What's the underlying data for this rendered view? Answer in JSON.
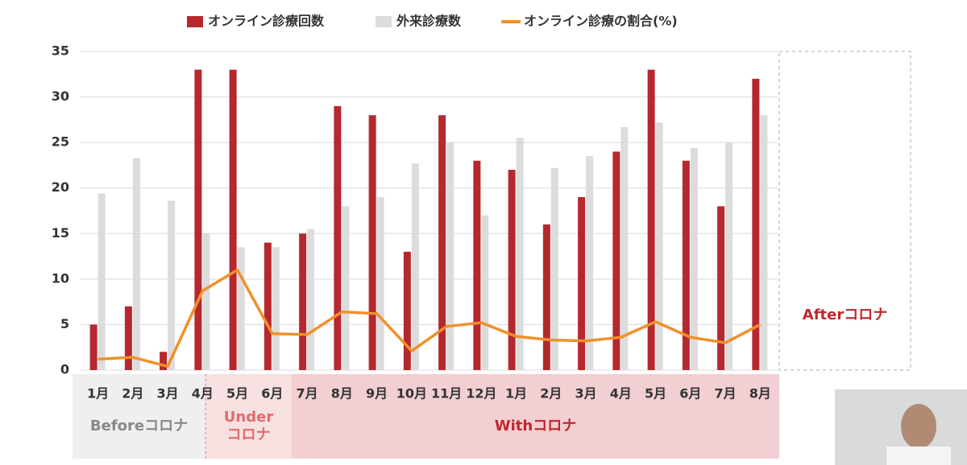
{
  "chart_data": {
    "type": "bar",
    "categories": [
      "1月",
      "2月",
      "3月",
      "4月",
      "5月",
      "6月",
      "7月",
      "8月",
      "9月",
      "10月",
      "11月",
      "12月",
      "1月",
      "2月",
      "3月",
      "4月",
      "5月",
      "6月",
      "7月",
      "8月"
    ],
    "series": [
      {
        "name": "オンライン診療回数",
        "type": "bar",
        "color": "#b5282e",
        "values": [
          5,
          7,
          2,
          33,
          33,
          14,
          15,
          29,
          28,
          13,
          28,
          23,
          22,
          16,
          19,
          24,
          33,
          23,
          18,
          32
        ]
      },
      {
        "name": "外来診療数",
        "type": "bar",
        "color": "#dcdcdc",
        "values": [
          19.4,
          23.3,
          18.6,
          15,
          13.5,
          13.5,
          15.5,
          18,
          19,
          22.7,
          25,
          17,
          25.5,
          22.2,
          23.5,
          26.7,
          27.2,
          24.4,
          25,
          28
        ]
      },
      {
        "name": "オンライン診療の割合(%)",
        "type": "line",
        "color": "#f0902a",
        "values": [
          1.2,
          1.4,
          0.4,
          8.7,
          11,
          4,
          3.9,
          6.4,
          6.2,
          2.1,
          4.8,
          5.2,
          3.7,
          3.3,
          3.2,
          3.6,
          5.3,
          3.6,
          3.0,
          5.0
        ]
      }
    ],
    "ylim": [
      0,
      35
    ],
    "yticks": [
      0,
      5,
      10,
      15,
      20,
      25,
      30,
      35
    ],
    "grid": true,
    "periods": [
      "Beforeコロナ",
      "Under\nコロナ",
      "Withコロナ",
      "Afterコロナ"
    ]
  }
}
